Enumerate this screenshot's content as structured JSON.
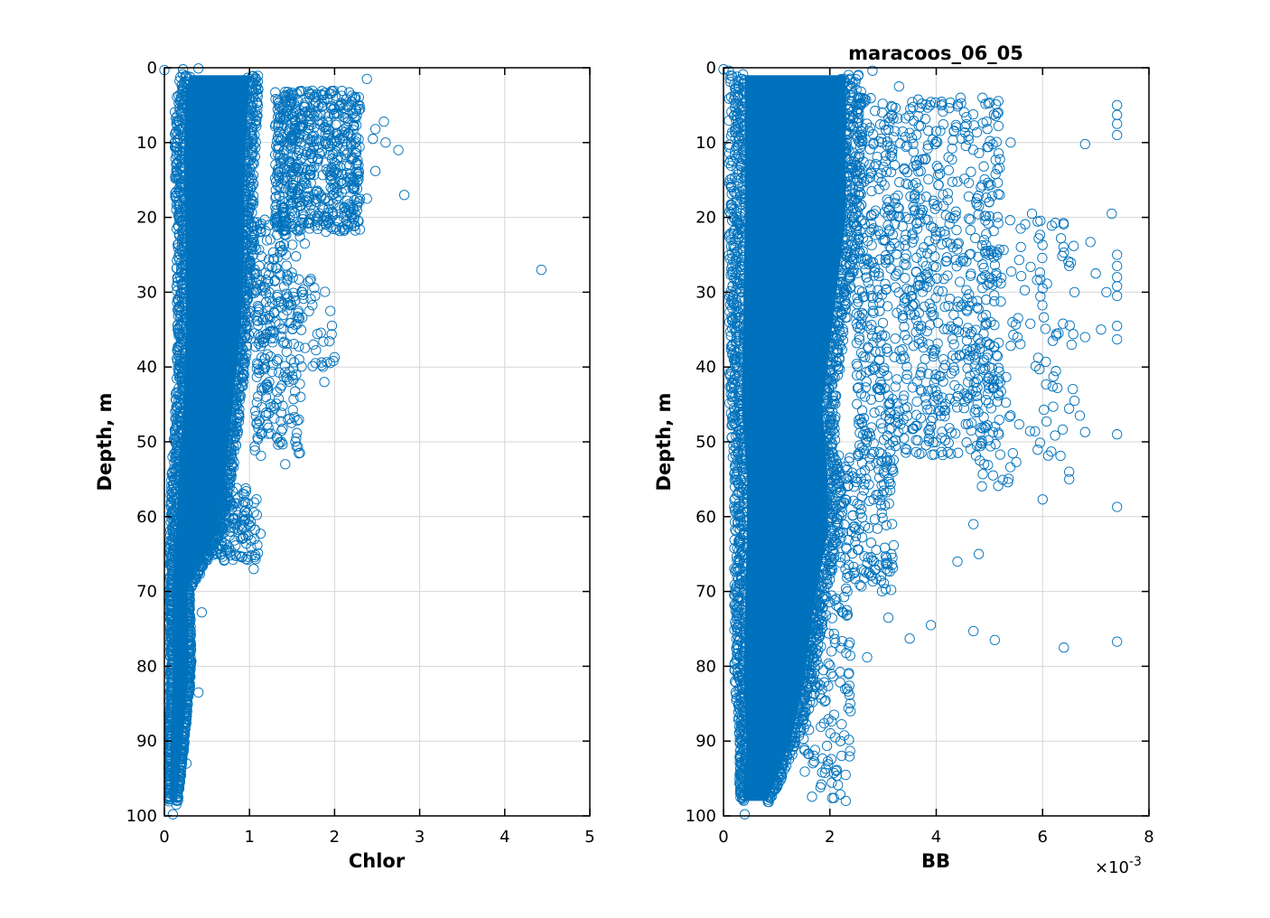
{
  "chart_data": [
    {
      "type": "scatter",
      "title": "",
      "xlabel": "Chlor",
      "ylabel": "Depth, m",
      "xlim": [
        0,
        5
      ],
      "ylim": [
        0,
        100
      ],
      "y_reversed": true,
      "xticks": [
        "0",
        "1",
        "2",
        "3",
        "4",
        "5"
      ],
      "yticks": [
        "0",
        "10",
        "20",
        "30",
        "40",
        "50",
        "60",
        "70",
        "80",
        "90",
        "100"
      ],
      "grid": true,
      "marker": "open-circle",
      "color": "#0072BD",
      "series": [
        {
          "envelope": [
            {
              "depth": 1,
              "lo": 0.18,
              "hi": 1.12
            },
            {
              "depth": 5,
              "lo": 0.12,
              "hi": 1.1
            },
            {
              "depth": 15,
              "lo": 0.12,
              "hi": 1.05
            },
            {
              "depth": 25,
              "lo": 0.14,
              "hi": 1.05
            },
            {
              "depth": 35,
              "lo": 0.15,
              "hi": 1.0
            },
            {
              "depth": 45,
              "lo": 0.13,
              "hi": 0.9
            },
            {
              "depth": 55,
              "lo": 0.08,
              "hi": 0.8
            },
            {
              "depth": 62,
              "lo": 0.06,
              "hi": 0.7
            },
            {
              "depth": 70,
              "lo": 0.06,
              "hi": 0.3
            },
            {
              "depth": 80,
              "lo": 0.07,
              "hi": 0.32
            },
            {
              "depth": 90,
              "lo": 0.05,
              "hi": 0.24
            },
            {
              "depth": 98,
              "lo": 0.05,
              "hi": 0.16
            }
          ],
          "clusters": [
            {
              "x": [
                1.3,
                2.3
              ],
              "y": [
                3,
                22
              ],
              "count": 650
            },
            {
              "x": [
                1.05,
                1.6
              ],
              "y": [
                20,
                52
              ],
              "count": 250
            },
            {
              "x": [
                0.4,
                1.1
              ],
              "y": [
                56,
                66
              ],
              "count": 220
            },
            {
              "x": [
                1.2,
                2.0
              ],
              "y": [
                28,
                40
              ],
              "count": 60
            }
          ],
          "points": [
            [
              0.0,
              0.3
            ],
            [
              0.22,
              0.2
            ],
            [
              0.4,
              0.1
            ],
            [
              2.38,
              1.5
            ],
            [
              2.2,
              4.5
            ],
            [
              2.3,
              5.5
            ],
            [
              2.58,
              7.2
            ],
            [
              2.45,
              9.5
            ],
            [
              2.6,
              10.0
            ],
            [
              2.75,
              11.0
            ],
            [
              2.48,
              8.2
            ],
            [
              2.2,
              12.0
            ],
            [
              2.48,
              13.8
            ],
            [
              2.38,
              17.5
            ],
            [
              2.82,
              17.0
            ],
            [
              1.98,
              19.5
            ],
            [
              1.65,
              23.5
            ],
            [
              4.43,
              27.0
            ],
            [
              1.62,
              30.0
            ],
            [
              1.95,
              32.5
            ],
            [
              1.75,
              37.0
            ],
            [
              2.0,
              38.7
            ],
            [
              1.88,
              42.0
            ],
            [
              1.6,
              44.0
            ],
            [
              1.55,
              49.5
            ],
            [
              1.42,
              53.0
            ],
            [
              1.05,
              67.0
            ],
            [
              1.13,
              62.3
            ],
            [
              0.44,
              72.8
            ],
            [
              0.4,
              83.5
            ],
            [
              0.26,
              93.0
            ],
            [
              0.1,
              99.8
            ],
            [
              0.14,
              98.5
            ]
          ]
        }
      ]
    },
    {
      "type": "scatter",
      "title": "maracoos_06_05",
      "xlabel": "BB",
      "ylabel": "Depth, m",
      "xlim": [
        0,
        0.008
      ],
      "ylim": [
        0,
        100
      ],
      "y_reversed": true,
      "xticks": [
        "0",
        "2",
        "4",
        "6",
        "8"
      ],
      "yticks": [
        "0",
        "10",
        "20",
        "30",
        "40",
        "50",
        "60",
        "70",
        "80",
        "90",
        "100"
      ],
      "x_exponent_label": "×10",
      "x_exponent_power": "-3",
      "grid": true,
      "marker": "open-circle",
      "color": "#0072BD",
      "series": [
        {
          "envelope": [
            {
              "depth": 1,
              "lo": 0.0001,
              "hi": 0.0026
            },
            {
              "depth": 8,
              "lo": 0.0001,
              "hi": 0.0026
            },
            {
              "depth": 20,
              "lo": 0.0001,
              "hi": 0.0026
            },
            {
              "depth": 35,
              "lo": 0.0001,
              "hi": 0.0023
            },
            {
              "depth": 45,
              "lo": 0.0001,
              "hi": 0.0021
            },
            {
              "depth": 55,
              "lo": 0.0002,
              "hi": 0.0022
            },
            {
              "depth": 62,
              "lo": 0.0002,
              "hi": 0.0022
            },
            {
              "depth": 72,
              "lo": 0.0002,
              "hi": 0.0019
            },
            {
              "depth": 82,
              "lo": 0.0002,
              "hi": 0.0017
            },
            {
              "depth": 90,
              "lo": 0.0003,
              "hi": 0.0014
            },
            {
              "depth": 98,
              "lo": 0.0003,
              "hi": 0.0009
            }
          ],
          "clusters": [
            {
              "x": [
                0.0025,
                0.0052
              ],
              "y": [
                4,
                52
              ],
              "count": 900
            },
            {
              "x": [
                0.0048,
                0.0066
              ],
              "y": [
                20,
                56
              ],
              "count": 130
            },
            {
              "x": [
                0.0022,
                0.0032
              ],
              "y": [
                52,
                70
              ],
              "count": 160
            },
            {
              "x": [
                0.0015,
                0.0024
              ],
              "y": [
                70,
                98
              ],
              "count": 140
            }
          ],
          "points": [
            [
              0.0,
              0.2
            ],
            [
              0.0001,
              0.4
            ],
            [
              0.0028,
              0.4
            ],
            [
              0.0033,
              2.5
            ],
            [
              0.0054,
              10.0
            ],
            [
              0.0074,
              5.0
            ],
            [
              0.0074,
              6.3
            ],
            [
              0.0074,
              7.5
            ],
            [
              0.0074,
              9.0
            ],
            [
              0.0068,
              10.2
            ],
            [
              0.0058,
              19.5
            ],
            [
              0.0073,
              19.5
            ],
            [
              0.0069,
              23.3
            ],
            [
              0.0074,
              25.0
            ],
            [
              0.0074,
              26.5
            ],
            [
              0.0074,
              28.0
            ],
            [
              0.0074,
              29.2
            ],
            [
              0.0074,
              30.5
            ],
            [
              0.0065,
              26.5
            ],
            [
              0.007,
              27.5
            ],
            [
              0.0066,
              30.0
            ],
            [
              0.0072,
              30.0
            ],
            [
              0.006,
              29.5
            ],
            [
              0.0071,
              35.0
            ],
            [
              0.0068,
              36.0
            ],
            [
              0.0074,
              34.5
            ],
            [
              0.0074,
              36.3
            ],
            [
              0.0063,
              35.5
            ],
            [
              0.0066,
              44.5
            ],
            [
              0.0062,
              45.3
            ],
            [
              0.0067,
              46.5
            ],
            [
              0.0068,
              48.7
            ],
            [
              0.0074,
              49.0
            ],
            [
              0.0065,
              54.0
            ],
            [
              0.0065,
              55.0
            ],
            [
              0.0074,
              58.7
            ],
            [
              0.006,
              57.7
            ],
            [
              0.0047,
              61.0
            ],
            [
              0.0048,
              65.0
            ],
            [
              0.0044,
              66.0
            ],
            [
              0.0047,
              75.3
            ],
            [
              0.0051,
              76.5
            ],
            [
              0.0064,
              77.5
            ],
            [
              0.0074,
              76.7
            ],
            [
              0.0039,
              74.5
            ],
            [
              0.0035,
              76.3
            ],
            [
              0.0031,
              73.5
            ],
            [
              0.0027,
              78.8
            ],
            [
              0.0023,
              98.0
            ],
            [
              0.0021,
              89.5
            ],
            [
              0.0022,
              90.0
            ],
            [
              0.0004,
              99.8
            ]
          ]
        }
      ]
    }
  ]
}
